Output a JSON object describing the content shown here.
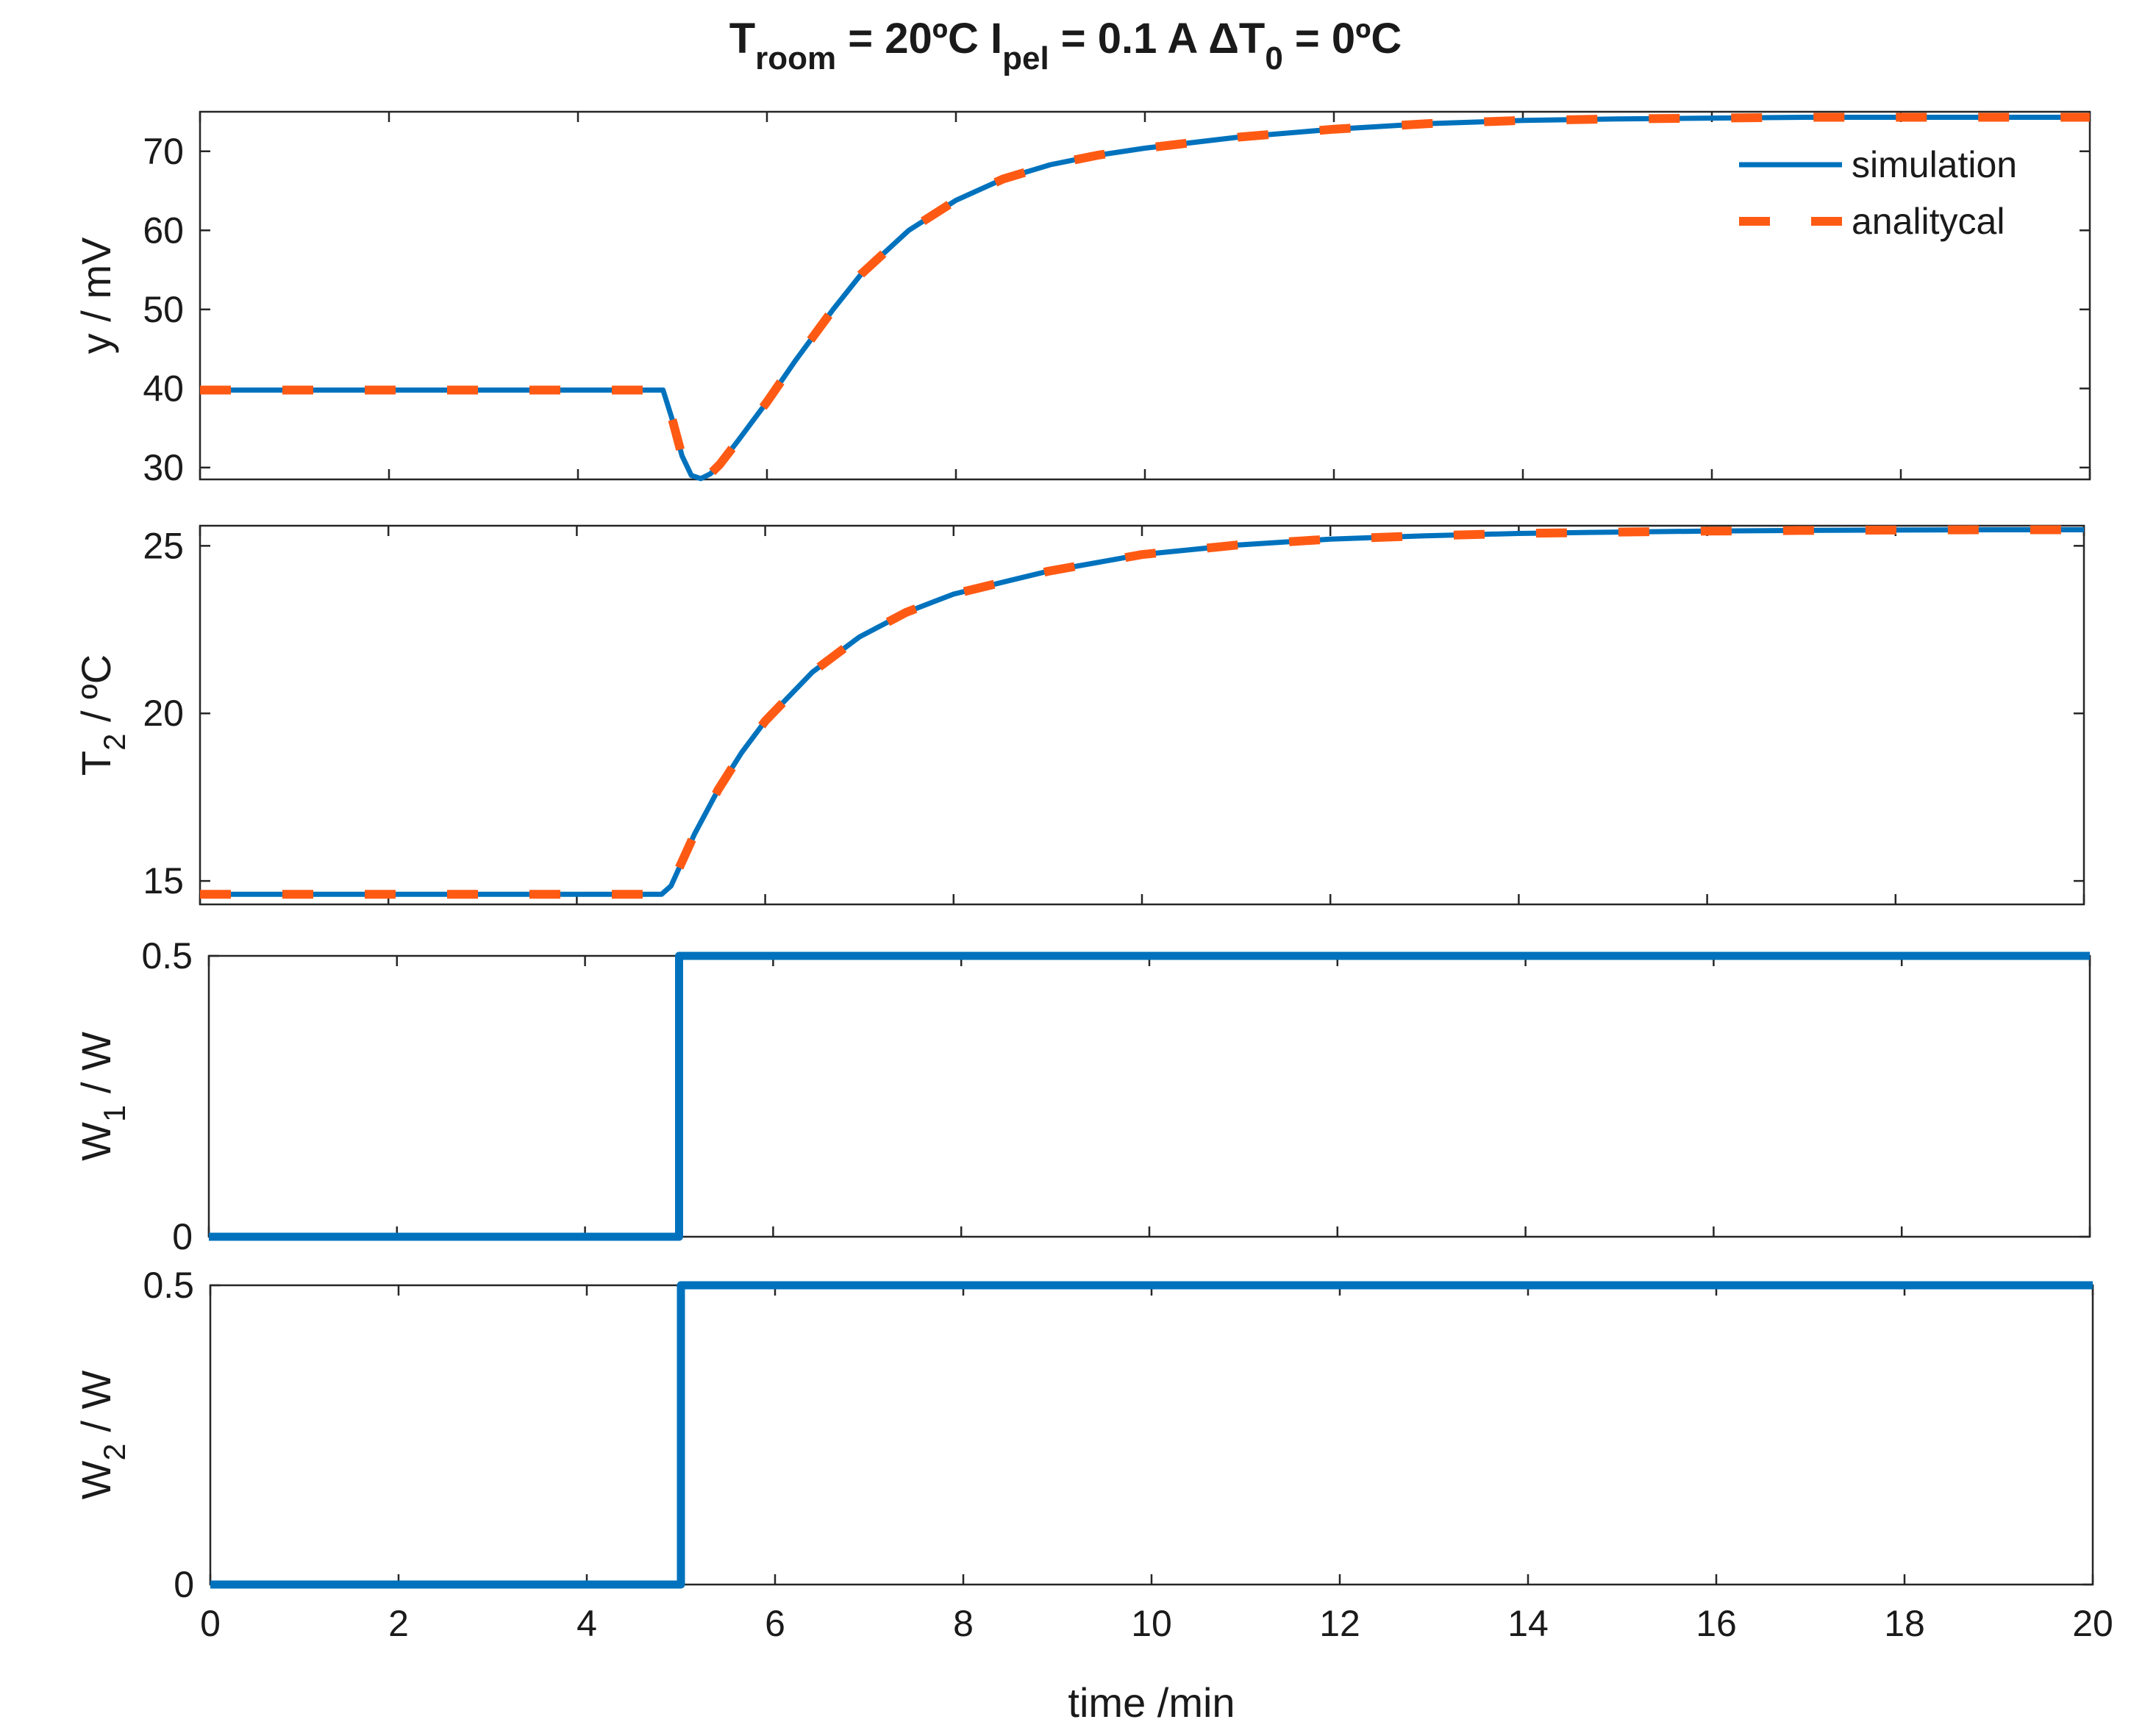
{
  "figure": {
    "title_parts": {
      "t1": "T",
      "t1_sub": "room",
      "t2": " = 20ºC  I",
      "t2_sub": "pel",
      "t3": " = 0.1 A  ΔT",
      "t3_sub": "0",
      "t4": " = 0ºC"
    },
    "xlabel": "time /min",
    "legend": {
      "simulation": "simulation",
      "analytical": "analitycal"
    }
  },
  "colors": {
    "simulation": "#0072BD",
    "analytical": "#FF5A14",
    "axis": "#262626"
  },
  "chart_data": [
    {
      "type": "line",
      "ylabel_main": "y / mV",
      "xlim": [
        0,
        20
      ],
      "ylim": [
        28.5,
        75
      ],
      "xticks": [
        0,
        2,
        4,
        6,
        8,
        10,
        12,
        14,
        16,
        18,
        20
      ],
      "yticks": [
        30,
        40,
        50,
        60,
        70
      ],
      "legend_location": "top-right",
      "series": [
        {
          "name": "simulation",
          "style": "solid",
          "x": [
            0,
            4.9,
            5.0,
            5.1,
            5.2,
            5.3,
            5.4,
            5.5,
            5.7,
            6.0,
            6.3,
            6.7,
            7.0,
            7.5,
            8.0,
            8.5,
            9.0,
            9.5,
            10,
            11,
            12,
            13,
            14,
            15,
            16,
            17,
            18,
            19,
            20
          ],
          "y": [
            39.8,
            39.8,
            36.0,
            31.5,
            29.0,
            28.6,
            29.2,
            30.4,
            33.5,
            38.3,
            43.5,
            50.0,
            54.5,
            60.0,
            63.8,
            66.5,
            68.3,
            69.5,
            70.4,
            71.8,
            72.8,
            73.5,
            73.9,
            74.1,
            74.2,
            74.3,
            74.3,
            74.3,
            74.3
          ]
        },
        {
          "name": "analitycal",
          "style": "dashed",
          "x": [
            0,
            4.9,
            5.0,
            5.1,
            5.2,
            5.3,
            5.4,
            5.5,
            5.7,
            6.0,
            6.3,
            6.7,
            7.0,
            7.5,
            8.0,
            8.5,
            9.0,
            9.5,
            10,
            11,
            12,
            13,
            14,
            15,
            16,
            17,
            18,
            19,
            20
          ],
          "y": [
            39.8,
            39.8,
            36.0,
            31.5,
            29.0,
            28.6,
            29.2,
            30.4,
            33.5,
            38.3,
            43.5,
            50.0,
            54.5,
            60.0,
            63.8,
            66.5,
            68.3,
            69.5,
            70.4,
            71.8,
            72.8,
            73.5,
            73.9,
            74.1,
            74.2,
            74.3,
            74.3,
            74.3,
            74.3
          ]
        }
      ]
    },
    {
      "type": "line",
      "ylabel_main": "T",
      "ylabel_sub": "2",
      "ylabel_rest": " / ºC",
      "xlim": [
        0,
        20
      ],
      "ylim": [
        14.3,
        25.6
      ],
      "xticks": [
        0,
        2,
        4,
        6,
        8,
        10,
        12,
        14,
        16,
        18,
        20
      ],
      "yticks": [
        15,
        20,
        25
      ],
      "series": [
        {
          "name": "simulation",
          "style": "solid",
          "x": [
            0,
            4.9,
            5.0,
            5.25,
            5.5,
            5.75,
            6.0,
            6.5,
            7.0,
            7.5,
            8.0,
            9.0,
            10,
            11,
            12,
            13,
            14,
            15,
            16,
            17,
            18,
            19,
            20
          ],
          "y": [
            14.6,
            14.6,
            14.85,
            16.4,
            17.72,
            18.83,
            19.77,
            21.23,
            22.28,
            23.02,
            23.56,
            24.24,
            24.74,
            25.02,
            25.2,
            25.3,
            25.37,
            25.41,
            25.44,
            25.46,
            25.47,
            25.48,
            25.48
          ]
        },
        {
          "name": "analitycal",
          "style": "dashed",
          "x": [
            0,
            4.9,
            5.0,
            5.25,
            5.5,
            5.75,
            6.0,
            6.5,
            7.0,
            7.5,
            8.0,
            9.0,
            10,
            11,
            12,
            13,
            14,
            15,
            16,
            17,
            18,
            19,
            20
          ],
          "y": [
            14.6,
            14.6,
            14.85,
            16.4,
            17.72,
            18.83,
            19.77,
            21.23,
            22.28,
            23.02,
            23.56,
            24.24,
            24.74,
            25.02,
            25.2,
            25.3,
            25.37,
            25.41,
            25.44,
            25.46,
            25.47,
            25.48,
            25.48
          ]
        }
      ]
    },
    {
      "type": "line",
      "ylabel_main": "W",
      "ylabel_sub": "1",
      "ylabel_rest": " / W",
      "xlim": [
        0,
        20
      ],
      "ylim": [
        0,
        0.5
      ],
      "xticks": [
        0,
        2,
        4,
        6,
        8,
        10,
        12,
        14,
        16,
        18,
        20
      ],
      "yticks": [
        0,
        0.5
      ],
      "series": [
        {
          "name": "simulation",
          "style": "solid-thick",
          "x": [
            0,
            5,
            5,
            20
          ],
          "y": [
            0,
            0,
            0.5,
            0.5
          ]
        }
      ]
    },
    {
      "type": "line",
      "ylabel_main": "W",
      "ylabel_sub": "2",
      "ylabel_rest": " / W",
      "xlim": [
        0,
        20
      ],
      "ylim": [
        0,
        0.5
      ],
      "xticks": [
        0,
        2,
        4,
        6,
        8,
        10,
        12,
        14,
        16,
        18,
        20
      ],
      "yticks": [
        0,
        0.5
      ],
      "series": [
        {
          "name": "simulation",
          "style": "solid-thick",
          "x": [
            0,
            5,
            5,
            20
          ],
          "y": [
            0,
            0,
            0.5,
            0.5
          ]
        }
      ]
    }
  ]
}
